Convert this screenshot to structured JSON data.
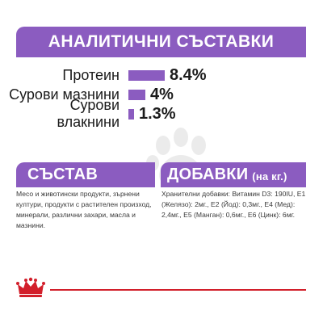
{
  "analytics": {
    "title": "АНАЛИТИЧНИ СЪСТАВКИ",
    "rows": [
      {
        "label": "Протеин",
        "value": "8.4%",
        "percent": 8.4
      },
      {
        "label": "Сурови мазнини",
        "value": "4%",
        "percent": 4
      },
      {
        "label": "Сурови влакнини",
        "value": "1.3%",
        "percent": 1.3
      }
    ]
  },
  "composition": {
    "title": "СЪСТАВ",
    "text": "Месо и животински продукти, зърнени култури, продукти с растителен произход, минерали, различни захари, масла и мазнини."
  },
  "additives": {
    "title": "ДОБАВКИ",
    "unit": "(на кг.)",
    "text": "Хранителни добавки: Витамин D3: 190IU, E1 (Желязо): 2мг., E2 (Йод): 0,3мг., E4 (Мед): 2,4мг., E5 (Манган): 0,6мг., E6 (Цинк): 6мг."
  },
  "colors": {
    "accent": "#8b5cc0",
    "footer_line": "#d21f2b"
  }
}
